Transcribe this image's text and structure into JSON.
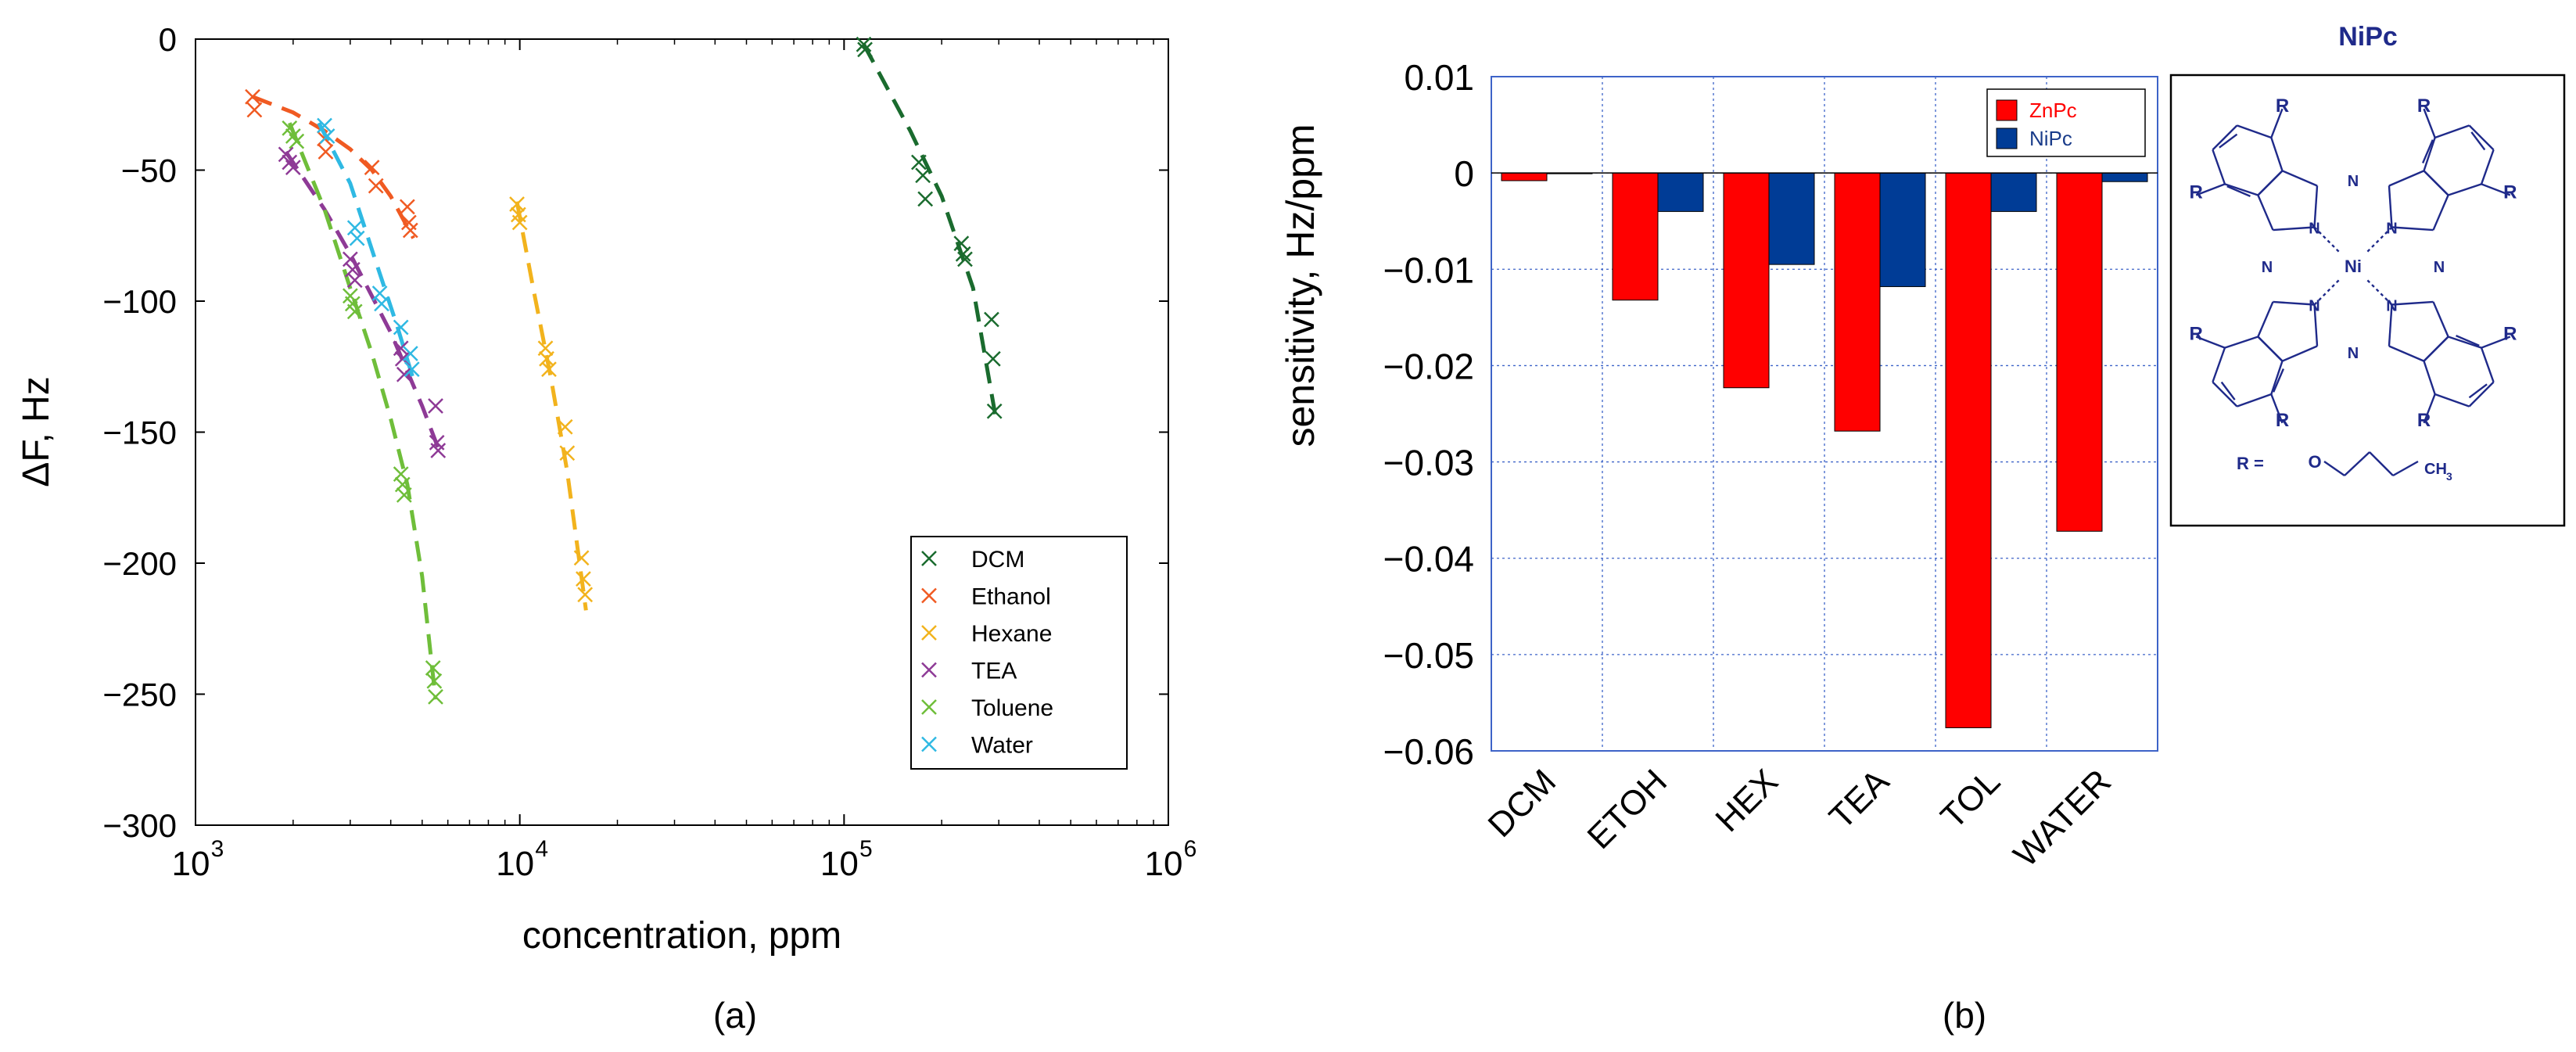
{
  "panel_labels": {
    "a": "(a)",
    "b": "(b)"
  },
  "chart_data": [
    {
      "type": "scatter",
      "xscale": "log",
      "xlabel": "concentration, ppm",
      "ylabel": "ΔF, Hz",
      "xlim": [
        1000,
        1000000
      ],
      "ylim": [
        -300,
        0
      ],
      "xticks": [
        {
          "value": 1000,
          "base": "10",
          "exp": "3"
        },
        {
          "value": 10000,
          "base": "10",
          "exp": "4"
        },
        {
          "value": 100000,
          "base": "10",
          "exp": "5"
        },
        {
          "value": 1000000,
          "base": "10",
          "exp": "6"
        }
      ],
      "yticks": [
        {
          "value": 0,
          "label": "0"
        },
        {
          "value": -50,
          "label": "−50"
        },
        {
          "value": -100,
          "label": "−100"
        },
        {
          "value": -150,
          "label": "−150"
        },
        {
          "value": -200,
          "label": "−200"
        },
        {
          "value": -250,
          "label": "−250"
        },
        {
          "value": -300,
          "label": "−300"
        }
      ],
      "legend_position": "lower-right",
      "series": [
        {
          "name": "DCM",
          "color": "#1a6b2e",
          "x": [
            115000,
            116000,
            170000,
            175000,
            178000,
            230000,
            233000,
            236000,
            285000,
            288000,
            291000
          ],
          "y": [
            -2,
            -4,
            -47,
            -52,
            -61,
            -78,
            -82,
            -84,
            -107,
            -122,
            -142
          ],
          "fit_x": [
            115000,
            160000,
            200000,
            250000,
            295000
          ],
          "fit_y": [
            -2,
            -35,
            -60,
            -95,
            -146
          ]
        },
        {
          "name": "Ethanol",
          "color": "#f05a22",
          "x": [
            1500,
            1520,
            2500,
            2520,
            3500,
            3600,
            4500,
            4550,
            4600
          ],
          "y": [
            -22,
            -27,
            -38,
            -43,
            -49,
            -56,
            -64,
            -70,
            -73
          ],
          "fit_x": [
            1500,
            2000,
            2500,
            3000,
            3500,
            4000,
            4700
          ],
          "fit_y": [
            -22,
            -28,
            -35,
            -42,
            -50,
            -60,
            -76
          ]
        },
        {
          "name": "Hexane",
          "color": "#f2b31d",
          "x": [
            9800,
            9900,
            10000,
            12000,
            12100,
            12300,
            13800,
            14000,
            15500,
            15700,
            15900
          ],
          "y": [
            -63,
            -67,
            -70,
            -118,
            -122,
            -126,
            -148,
            -158,
            -198,
            -206,
            -212
          ],
          "fit_x": [
            9800,
            11000,
            12500,
            14000,
            16000
          ],
          "fit_y": [
            -62,
            -95,
            -130,
            -165,
            -218
          ]
        },
        {
          "name": "TEA",
          "color": "#8e3a96",
          "x": [
            1900,
            1950,
            2000,
            3000,
            3050,
            3100,
            4300,
            4350,
            4400,
            5500,
            5550,
            5600
          ],
          "y": [
            -44,
            -47,
            -49,
            -84,
            -88,
            -92,
            -118,
            -122,
            -128,
            -140,
            -154,
            -157
          ],
          "fit_x": [
            1900,
            2500,
            3000,
            4000,
            5000,
            5600
          ],
          "fit_y": [
            -43,
            -65,
            -82,
            -112,
            -140,
            -156
          ]
        },
        {
          "name": "Toluene",
          "color": "#6fbe3a",
          "x": [
            1950,
            2000,
            2050,
            3000,
            3050,
            3100,
            4300,
            4350,
            4400,
            5400,
            5450,
            5500
          ],
          "y": [
            -34,
            -37,
            -39,
            -98,
            -101,
            -104,
            -166,
            -170,
            -174,
            -240,
            -245,
            -251
          ],
          "fit_x": [
            1950,
            2500,
            3000,
            3500,
            4000,
            4500,
            5000,
            5500
          ],
          "fit_y": [
            -32,
            -65,
            -95,
            -120,
            -145,
            -170,
            -205,
            -252
          ]
        },
        {
          "name": "Water",
          "color": "#2fb9e3",
          "x": [
            2500,
            2550,
            3100,
            3150,
            3700,
            3750,
            4300,
            4600,
            4650
          ],
          "y": [
            -33,
            -37,
            -72,
            -76,
            -97,
            -101,
            -110,
            -120,
            -126
          ],
          "fit_x": [
            2400,
            3000,
            3600,
            4200,
            4700
          ],
          "fit_y": [
            -32,
            -55,
            -85,
            -110,
            -130
          ]
        }
      ]
    },
    {
      "type": "bar",
      "ylabel": "sensitivity, Hz/ppm",
      "ylim": [
        -0.06,
        0.01
      ],
      "yticks": [
        {
          "value": 0.01,
          "label": "0.01"
        },
        {
          "value": 0,
          "label": "0"
        },
        {
          "value": -0.01,
          "label": "−0.01"
        },
        {
          "value": -0.02,
          "label": "−0.02"
        },
        {
          "value": -0.03,
          "label": "−0.03"
        },
        {
          "value": -0.04,
          "label": "−0.04"
        },
        {
          "value": -0.05,
          "label": "−0.05"
        },
        {
          "value": -0.06,
          "label": "−0.06"
        }
      ],
      "categories": [
        "DCM",
        "ETOH",
        "HEX",
        "TEA",
        "TOL",
        "WATER"
      ],
      "grid": true,
      "legend_position": "top-right",
      "series": [
        {
          "name": "ZnPc",
          "color": "#ff0000",
          "label_color": "#ff0000",
          "values": [
            -0.0008,
            -0.0132,
            -0.0223,
            -0.0268,
            -0.0576,
            -0.0372
          ]
        },
        {
          "name": "NiPc",
          "color": "#003c96",
          "label_color": "#1a3c8a",
          "values": [
            0.0,
            -0.004,
            -0.0095,
            -0.0118,
            -0.004,
            -0.0009
          ]
        }
      ]
    }
  ],
  "structure": {
    "title": "NiPc",
    "r_label": "R",
    "n_label": "N",
    "metal_label": "Ni",
    "substituent_prefix": "R =",
    "oxygen_label": "O",
    "ch3_label": "CH",
    "ch3_sub": "3",
    "color": "#1f2a8a"
  }
}
